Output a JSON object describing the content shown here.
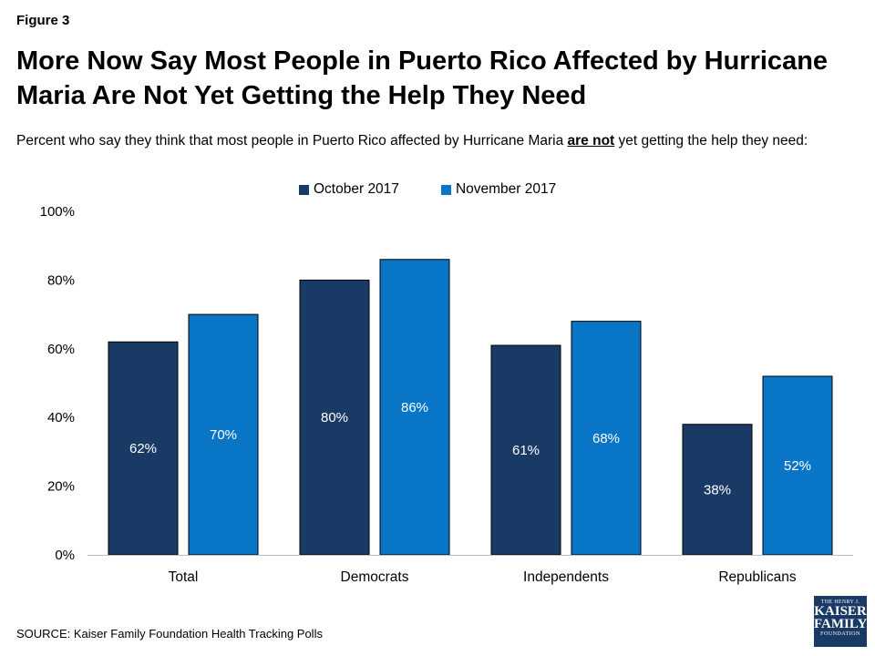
{
  "figure_label": "Figure 3",
  "title": "More Now Say Most People in Puerto Rico Affected by Hurricane Maria Are Not Yet Getting the Help They Need",
  "subtitle_before": "Percent who say they think that most people in Puerto Rico affected by Hurricane Maria ",
  "subtitle_emph": "are not",
  "subtitle_after": " yet getting the help they need:",
  "source": "SOURCE: Kaiser Family Foundation Health Tracking Polls",
  "logo": {
    "line1": "THE HENRY J.",
    "line2": "KAISER",
    "line3": "FAMILY",
    "line4": "FOUNDATION"
  },
  "colors": {
    "october": "#1a3a66",
    "november": "#0875c7",
    "axis": "#bfbfbf"
  },
  "chart_data": {
    "type": "bar",
    "categories": [
      "Total",
      "Democrats",
      "Independents",
      "Republicans"
    ],
    "series": [
      {
        "name": "October 2017",
        "values": [
          62,
          80,
          61,
          38
        ],
        "labels": [
          "62%",
          "80%",
          "61%",
          "38%"
        ]
      },
      {
        "name": "November 2017",
        "values": [
          70,
          86,
          68,
          52
        ],
        "labels": [
          "70%",
          "86%",
          "68%",
          "52%"
        ]
      }
    ],
    "ylim": [
      0,
      100
    ],
    "yticks": [
      0,
      20,
      40,
      60,
      80,
      100
    ],
    "ytick_labels": [
      "0%",
      "20%",
      "40%",
      "60%",
      "80%",
      "100%"
    ],
    "legend": "top",
    "grid": false
  }
}
